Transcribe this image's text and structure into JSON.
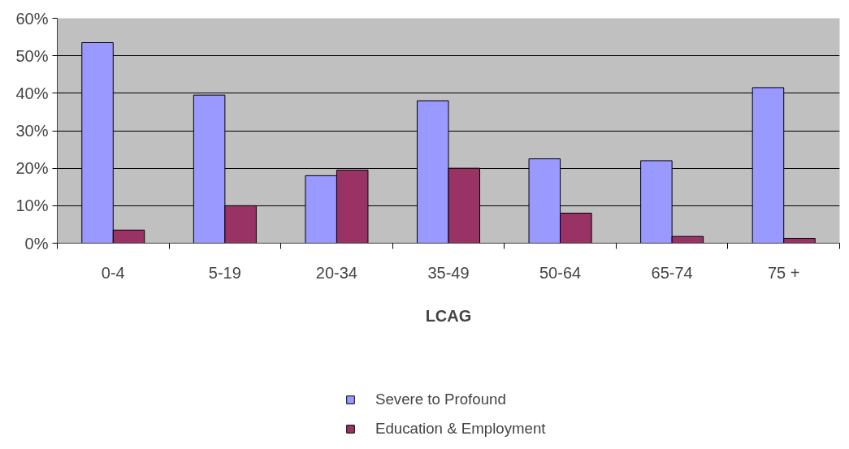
{
  "chart_data": {
    "type": "bar",
    "xlabel": "LCAG",
    "categories": [
      "0-4",
      "5-19",
      "20-34",
      "35-49",
      "50-64",
      "65-74",
      "75 +"
    ],
    "series": [
      {
        "name": "Severe to Profound",
        "color": "#9999ff",
        "values": [
          53.5,
          39.5,
          18,
          38,
          22.5,
          22,
          41.5
        ]
      },
      {
        "name": "Education & Employment",
        "color": "#993366",
        "values": [
          3.5,
          10,
          19.5,
          20,
          8,
          1.8,
          1.3
        ]
      }
    ],
    "ylim": [
      0,
      60
    ],
    "yticks": [
      {
        "value": 0,
        "label": "0%"
      },
      {
        "value": 10,
        "label": "10%"
      },
      {
        "value": 20,
        "label": "20%"
      },
      {
        "value": 30,
        "label": "30%"
      },
      {
        "value": 40,
        "label": "40%"
      },
      {
        "value": 50,
        "label": "50%"
      },
      {
        "value": 60,
        "label": "60%"
      }
    ],
    "grid": "y",
    "legend": "bottom"
  }
}
